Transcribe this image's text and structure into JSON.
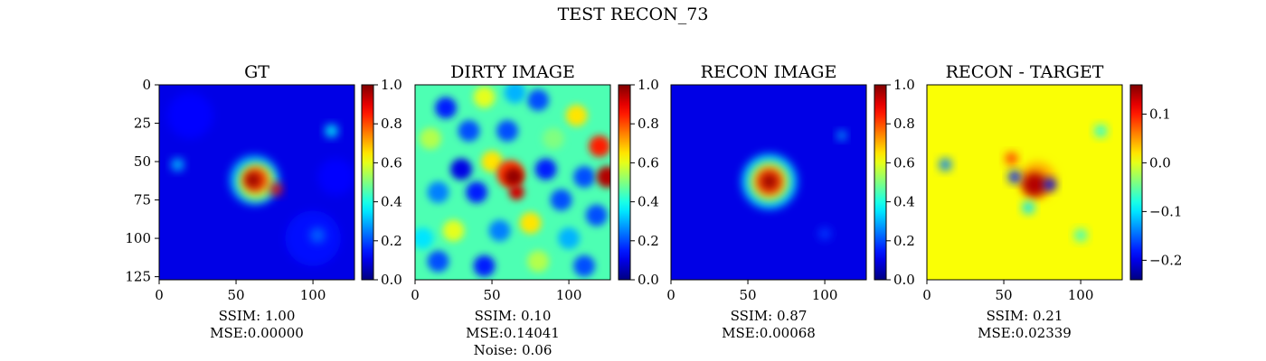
{
  "figure": {
    "suptitle": "TEST RECON_73"
  },
  "chart_data": [
    {
      "type": "heatmap",
      "title": "GT",
      "xticks": [
        0,
        50,
        100
      ],
      "yticks": [
        0,
        25,
        50,
        75,
        100,
        125
      ],
      "xlim": [
        0,
        127
      ],
      "ylim": [
        127,
        0
      ],
      "colorbar": {
        "range": [
          0.0,
          1.0
        ],
        "ticks": [
          "0.0",
          "0.2",
          "0.4",
          "0.6",
          "0.8",
          "1.0"
        ],
        "tick_values": [
          0,
          0.2,
          0.4,
          0.6,
          0.8,
          1.0
        ],
        "colormap": "jet"
      },
      "caption": [
        "SSIM: 1.00",
        "MSE:0.00000"
      ]
    },
    {
      "type": "heatmap",
      "title": "DIRTY IMAGE",
      "xticks": [
        0,
        50,
        100
      ],
      "xlim": [
        0,
        127
      ],
      "ylim": [
        127,
        0
      ],
      "colorbar": {
        "range": [
          0.0,
          1.0
        ],
        "ticks": [
          "0.0",
          "0.2",
          "0.4",
          "0.6",
          "0.8",
          "1.0"
        ],
        "tick_values": [
          0,
          0.2,
          0.4,
          0.6,
          0.8,
          1.0
        ],
        "colormap": "jet"
      },
      "caption": [
        "SSIM: 0.10",
        "MSE:0.14041",
        "Noise: 0.06"
      ]
    },
    {
      "type": "heatmap",
      "title": "RECON IMAGE",
      "xticks": [
        0,
        50,
        100
      ],
      "xlim": [
        0,
        127
      ],
      "ylim": [
        127,
        0
      ],
      "colorbar": {
        "range": [
          0.0,
          1.0
        ],
        "ticks": [
          "0.0",
          "0.2",
          "0.4",
          "0.6",
          "0.8",
          "1.0"
        ],
        "tick_values": [
          0,
          0.2,
          0.4,
          0.6,
          0.8,
          1.0
        ],
        "colormap": "jet"
      },
      "caption": [
        "SSIM: 0.87",
        "MSE:0.00068"
      ]
    },
    {
      "type": "heatmap",
      "title": "RECON - TARGET",
      "xticks": [
        0,
        50,
        100
      ],
      "xlim": [
        0,
        127
      ],
      "ylim": [
        127,
        0
      ],
      "colorbar": {
        "range": [
          -0.24,
          0.16
        ],
        "ticks": [
          "0.1",
          "0.0",
          "−0.1",
          "−0.2"
        ],
        "tick_values": [
          0.1,
          0.0,
          -0.1,
          -0.2
        ],
        "colormap": "jet"
      },
      "caption": [
        "SSIM: 0.21",
        "MSE:0.02339"
      ]
    }
  ]
}
